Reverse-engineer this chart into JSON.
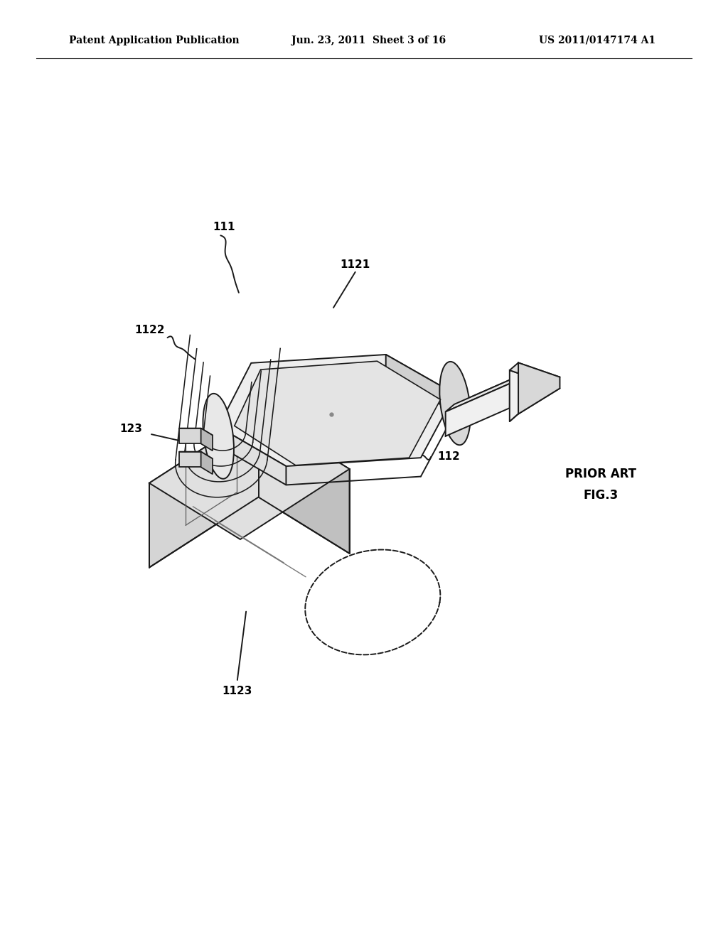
{
  "background_color": "#ffffff",
  "header_text": "Patent Application Publication",
  "header_date": "Jun. 23, 2011  Sheet 3 of 16",
  "header_patent": "US 2011/0147174 A1",
  "header_fontsize": 10,
  "prior_art_label": "PRIOR ART",
  "fig_label": "FIG.3",
  "label_fontsize": 11,
  "line_color": "#1a1a1a",
  "line_width": 1.4
}
